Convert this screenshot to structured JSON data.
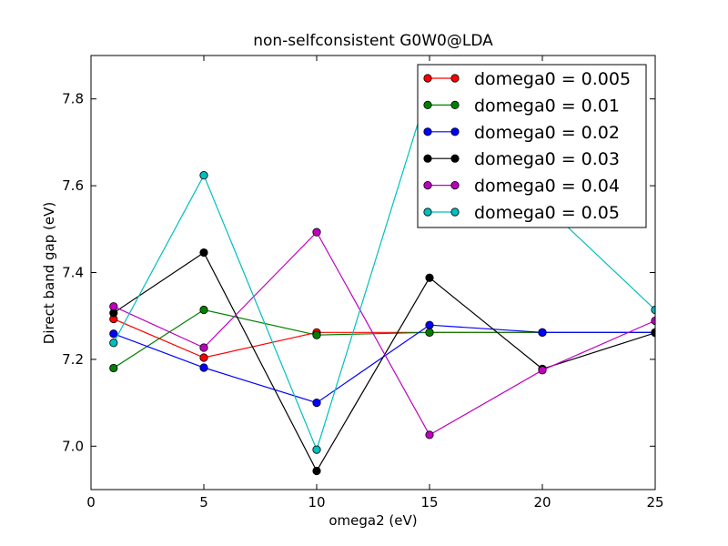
{
  "chart_data": {
    "type": "line",
    "title": "non-selfconsistent G0W0@LDA",
    "xlabel": "omega2 (eV)",
    "ylabel": "Direct band gap (eV)",
    "xlim": [
      0,
      25
    ],
    "ylim": [
      6.9,
      7.9
    ],
    "xticks": [
      0,
      5,
      10,
      15,
      20,
      25
    ],
    "yticks": [
      7.0,
      7.2,
      7.4,
      7.6,
      7.8
    ],
    "ytick_labels": [
      "7.0",
      "7.2",
      "7.4",
      "7.6",
      "7.8"
    ],
    "x": [
      1,
      5,
      10,
      15,
      20,
      25
    ],
    "grid": false,
    "legend_position": "top-right",
    "series": [
      {
        "name": "domega0 = 0.005",
        "color": "#ff0000",
        "values": [
          7.293,
          7.204,
          7.262,
          7.262,
          7.262,
          7.262
        ]
      },
      {
        "name": "domega0 = 0.01",
        "color": "#008000",
        "values": [
          7.18,
          7.314,
          7.256,
          7.262,
          7.262,
          7.262
        ]
      },
      {
        "name": "domega0 = 0.02",
        "color": "#0000ff",
        "values": [
          7.259,
          7.181,
          7.1,
          7.279,
          7.262,
          7.262
        ]
      },
      {
        "name": "domega0 = 0.03",
        "color": "#000000",
        "values": [
          7.307,
          7.446,
          6.943,
          7.388,
          7.178,
          7.261
        ]
      },
      {
        "name": "domega0 = 0.04",
        "color": "#bf00bf",
        "values": [
          7.322,
          7.227,
          7.493,
          7.026,
          7.175,
          7.289
        ]
      },
      {
        "name": "domega0 = 0.05",
        "color": "#00bfbf",
        "values": [
          7.238,
          7.624,
          6.992,
          7.83,
          7.56,
          7.314
        ]
      }
    ]
  }
}
